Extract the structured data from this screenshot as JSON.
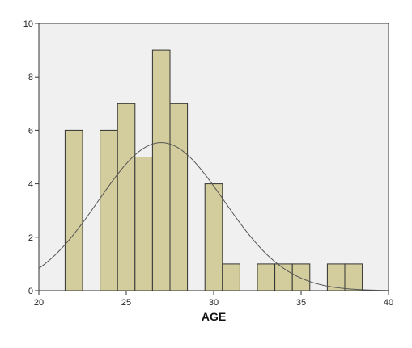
{
  "chart_data": {
    "type": "bar",
    "subtype": "histogram",
    "xlabel": "AGE",
    "ylabel": "",
    "xlim": [
      20,
      40
    ],
    "ylim": [
      0,
      10
    ],
    "x_ticks": [
      "20",
      "25",
      "30",
      "35",
      "40"
    ],
    "y_ticks": [
      "0",
      "2",
      "4",
      "6",
      "8",
      "10"
    ],
    "bin_width": 1,
    "bins": [
      {
        "start": 21.5,
        "end": 22.5,
        "count": 6
      },
      {
        "start": 23.5,
        "end": 24.5,
        "count": 6
      },
      {
        "start": 24.5,
        "end": 25.5,
        "count": 7
      },
      {
        "start": 25.5,
        "end": 26.5,
        "count": 5
      },
      {
        "start": 26.5,
        "end": 27.5,
        "count": 9
      },
      {
        "start": 27.5,
        "end": 28.5,
        "count": 7
      },
      {
        "start": 29.5,
        "end": 30.5,
        "count": 4
      },
      {
        "start": 30.5,
        "end": 31.5,
        "count": 1
      },
      {
        "start": 32.5,
        "end": 33.5,
        "count": 1
      },
      {
        "start": 33.5,
        "end": 34.5,
        "count": 1
      },
      {
        "start": 34.5,
        "end": 35.5,
        "count": 1
      },
      {
        "start": 36.5,
        "end": 37.5,
        "count": 1
      },
      {
        "start": 37.5,
        "end": 38.5,
        "count": 1
      }
    ],
    "normal_curve": {
      "mean": 27,
      "sd": 3.6,
      "n": 50
    },
    "grid": false,
    "colors": {
      "bar_fill": "#d3cd9d",
      "bar_stroke": "#333333",
      "plot_background": "#f0f0f0",
      "curve": "#555555"
    }
  }
}
